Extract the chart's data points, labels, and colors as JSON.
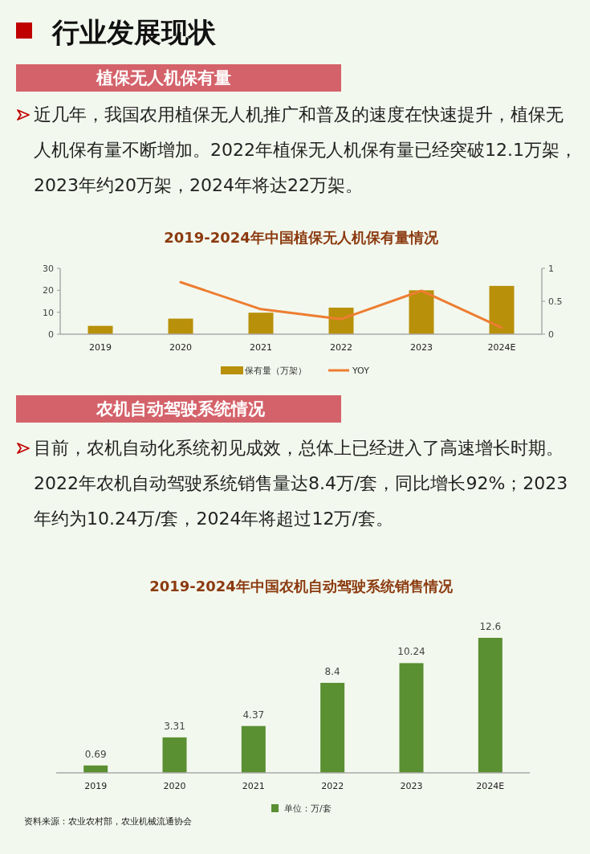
{
  "chart_data": [
    {
      "type": "bar",
      "title": "2019-2024年中国植保无人机保有量情况",
      "annotations": [
        "行业发展现状",
        "植保无人机保有量",
        "近几年，我国农用植保无人机推广和普及的速度在快速提升，植保无人机保有量不断增加。2022年植保无人机保有量已经突破12.1万架，2023年约20万架，2024年将达22万架。"
      ],
      "categories": [
        "2019",
        "2020",
        "2021",
        "2022",
        "2023",
        "2024E"
      ],
      "series": [
        {
          "name": "保有量（万架）",
          "color": "#b8900a",
          "values": [
            3.8,
            7.1,
            9.8,
            12.1,
            20,
            22
          ]
        },
        {
          "name": "YOY",
          "type": "line",
          "axis": "y2",
          "color": "#ed7d31",
          "values": [
            null,
            0.79,
            0.38,
            0.23,
            0.66,
            0.1
          ]
        }
      ],
      "ylim": [
        0,
        30
      ],
      "yticks": [
        0,
        10,
        20,
        30
      ],
      "y2lim": [
        0,
        1
      ],
      "y2ticks": [
        0,
        0.5,
        1
      ],
      "legend": "bottom"
    },
    {
      "type": "bar",
      "title": "2019-2024年中国农机自动驾驶系统销售情况",
      "annotations": [
        "农机自动驾驶系统情况",
        "目前，农机自动化系统初见成效，总体上已经进入了高速增长时期。2022年农机自动驾驶系统销售量达8.4万/套，同比增长92%；2023年约为10.24万/套，2024年将超过12万/套。",
        "资料来源：农业农村部，农业机械流通协会"
      ],
      "categories": [
        "2019",
        "2020",
        "2021",
        "2022",
        "2023",
        "2024E"
      ],
      "series": [
        {
          "name": "单位：万/套",
          "color": "#5a8f32",
          "values": [
            0.69,
            3.31,
            4.37,
            8.4,
            10.24,
            12.6
          ]
        }
      ],
      "data_labels": true,
      "legend": "bottom"
    }
  ]
}
